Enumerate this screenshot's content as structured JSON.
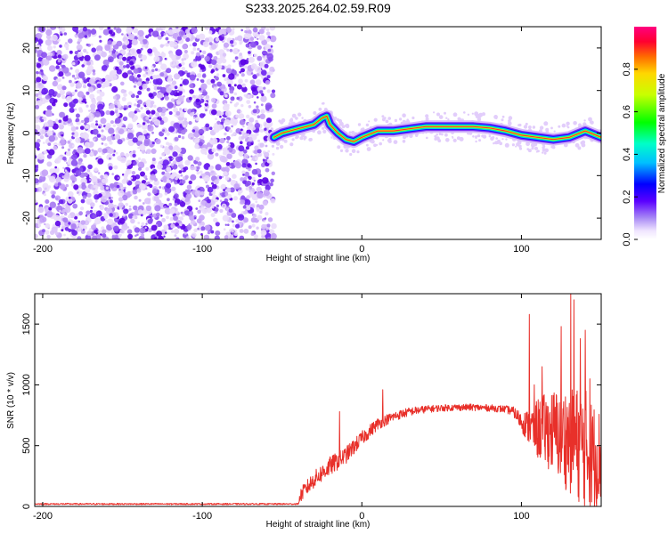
{
  "title": "S233.2025.264.02.59.R09",
  "colors": {
    "snr_line": "#e8302a",
    "axis": "#000000",
    "background": "#ffffff"
  },
  "chart_data": [
    {
      "type": "heatmap",
      "name": "spectrogram",
      "xlabel": "Height of straight line (km)",
      "ylabel": "Frequency (Hz)",
      "xlim": [
        -205,
        150
      ],
      "ylim": [
        -25,
        25
      ],
      "x_ticks": [
        -200,
        -100,
        0,
        100
      ],
      "x_tick_labels": [
        "-200",
        "-100",
        "0",
        "100"
      ],
      "y_ticks": [
        -20,
        -10,
        0,
        10,
        20
      ],
      "y_tick_labels": [
        "-20",
        "-10",
        "0",
        "10",
        "20"
      ],
      "noise_region_x": [
        -205,
        -55
      ],
      "ridge": {
        "x": [
          -55,
          -50,
          -45,
          -40,
          -35,
          -30,
          -25,
          -22,
          -20,
          -15,
          -10,
          -5,
          0,
          10,
          20,
          30,
          40,
          50,
          60,
          70,
          80,
          90,
          100,
          110,
          120,
          130,
          140,
          150
        ],
        "freq": [
          -1,
          0,
          0.5,
          1,
          1.5,
          2,
          3.5,
          4,
          2,
          0,
          -1.5,
          -2,
          -1,
          0.5,
          0.5,
          1,
          1.5,
          1.5,
          1.5,
          1.5,
          1.2,
          0.5,
          -0.5,
          -1,
          -1.5,
          -1,
          0.5,
          -1
        ]
      }
    },
    {
      "type": "colorbar",
      "name": "amplitude-colorbar",
      "label": "Normalized spectral amplitude",
      "range": [
        0,
        1
      ],
      "ticks": [
        0.0,
        0.2,
        0.4,
        0.6,
        0.8
      ],
      "tick_labels": [
        "0.0",
        "0.2",
        "0.4",
        "0.6",
        "0.8"
      ]
    },
    {
      "type": "line",
      "name": "snr",
      "xlabel": "Height of straight line (km)",
      "ylabel": "SNR (10 * v/v)",
      "xlim": [
        -205,
        150
      ],
      "ylim": [
        0,
        1750
      ],
      "x_ticks": [
        -200,
        -100,
        0,
        100
      ],
      "x_tick_labels": [
        "-200",
        "-100",
        "0",
        "100"
      ],
      "y_ticks": [
        0,
        500,
        1000,
        1500
      ],
      "y_tick_labels": [
        "0",
        "500",
        "1000",
        "1500"
      ],
      "envelope": {
        "x": [
          -205,
          -40,
          -38,
          -30,
          -20,
          -10,
          0,
          10,
          20,
          30,
          40,
          50,
          60,
          70,
          80,
          90,
          95,
          100,
          105,
          110,
          120,
          130,
          140,
          145,
          150
        ],
        "values": [
          20,
          20,
          100,
          220,
          330,
          420,
          560,
          680,
          740,
          780,
          800,
          810,
          815,
          815,
          810,
          800,
          780,
          700,
          650,
          640,
          620,
          550,
          480,
          420,
          400
        ],
        "noise": [
          6,
          6,
          60,
          70,
          80,
          70,
          60,
          50,
          40,
          35,
          30,
          28,
          28,
          28,
          28,
          30,
          40,
          80,
          150,
          250,
          350,
          450,
          500,
          450,
          400
        ]
      },
      "spikes": [
        {
          "x": -14,
          "value": 780
        },
        {
          "x": 13,
          "value": 960
        },
        {
          "x": 105,
          "value": 1580
        },
        {
          "x": 108,
          "value": 1000
        },
        {
          "x": 113,
          "value": 1150
        },
        {
          "x": 125,
          "value": 1480
        },
        {
          "x": 131,
          "value": 1750
        },
        {
          "x": 133,
          "value": 1700
        },
        {
          "x": 137,
          "value": 1380
        },
        {
          "x": 140,
          "value": 1450
        },
        {
          "x": 143,
          "value": 1050
        }
      ]
    }
  ]
}
